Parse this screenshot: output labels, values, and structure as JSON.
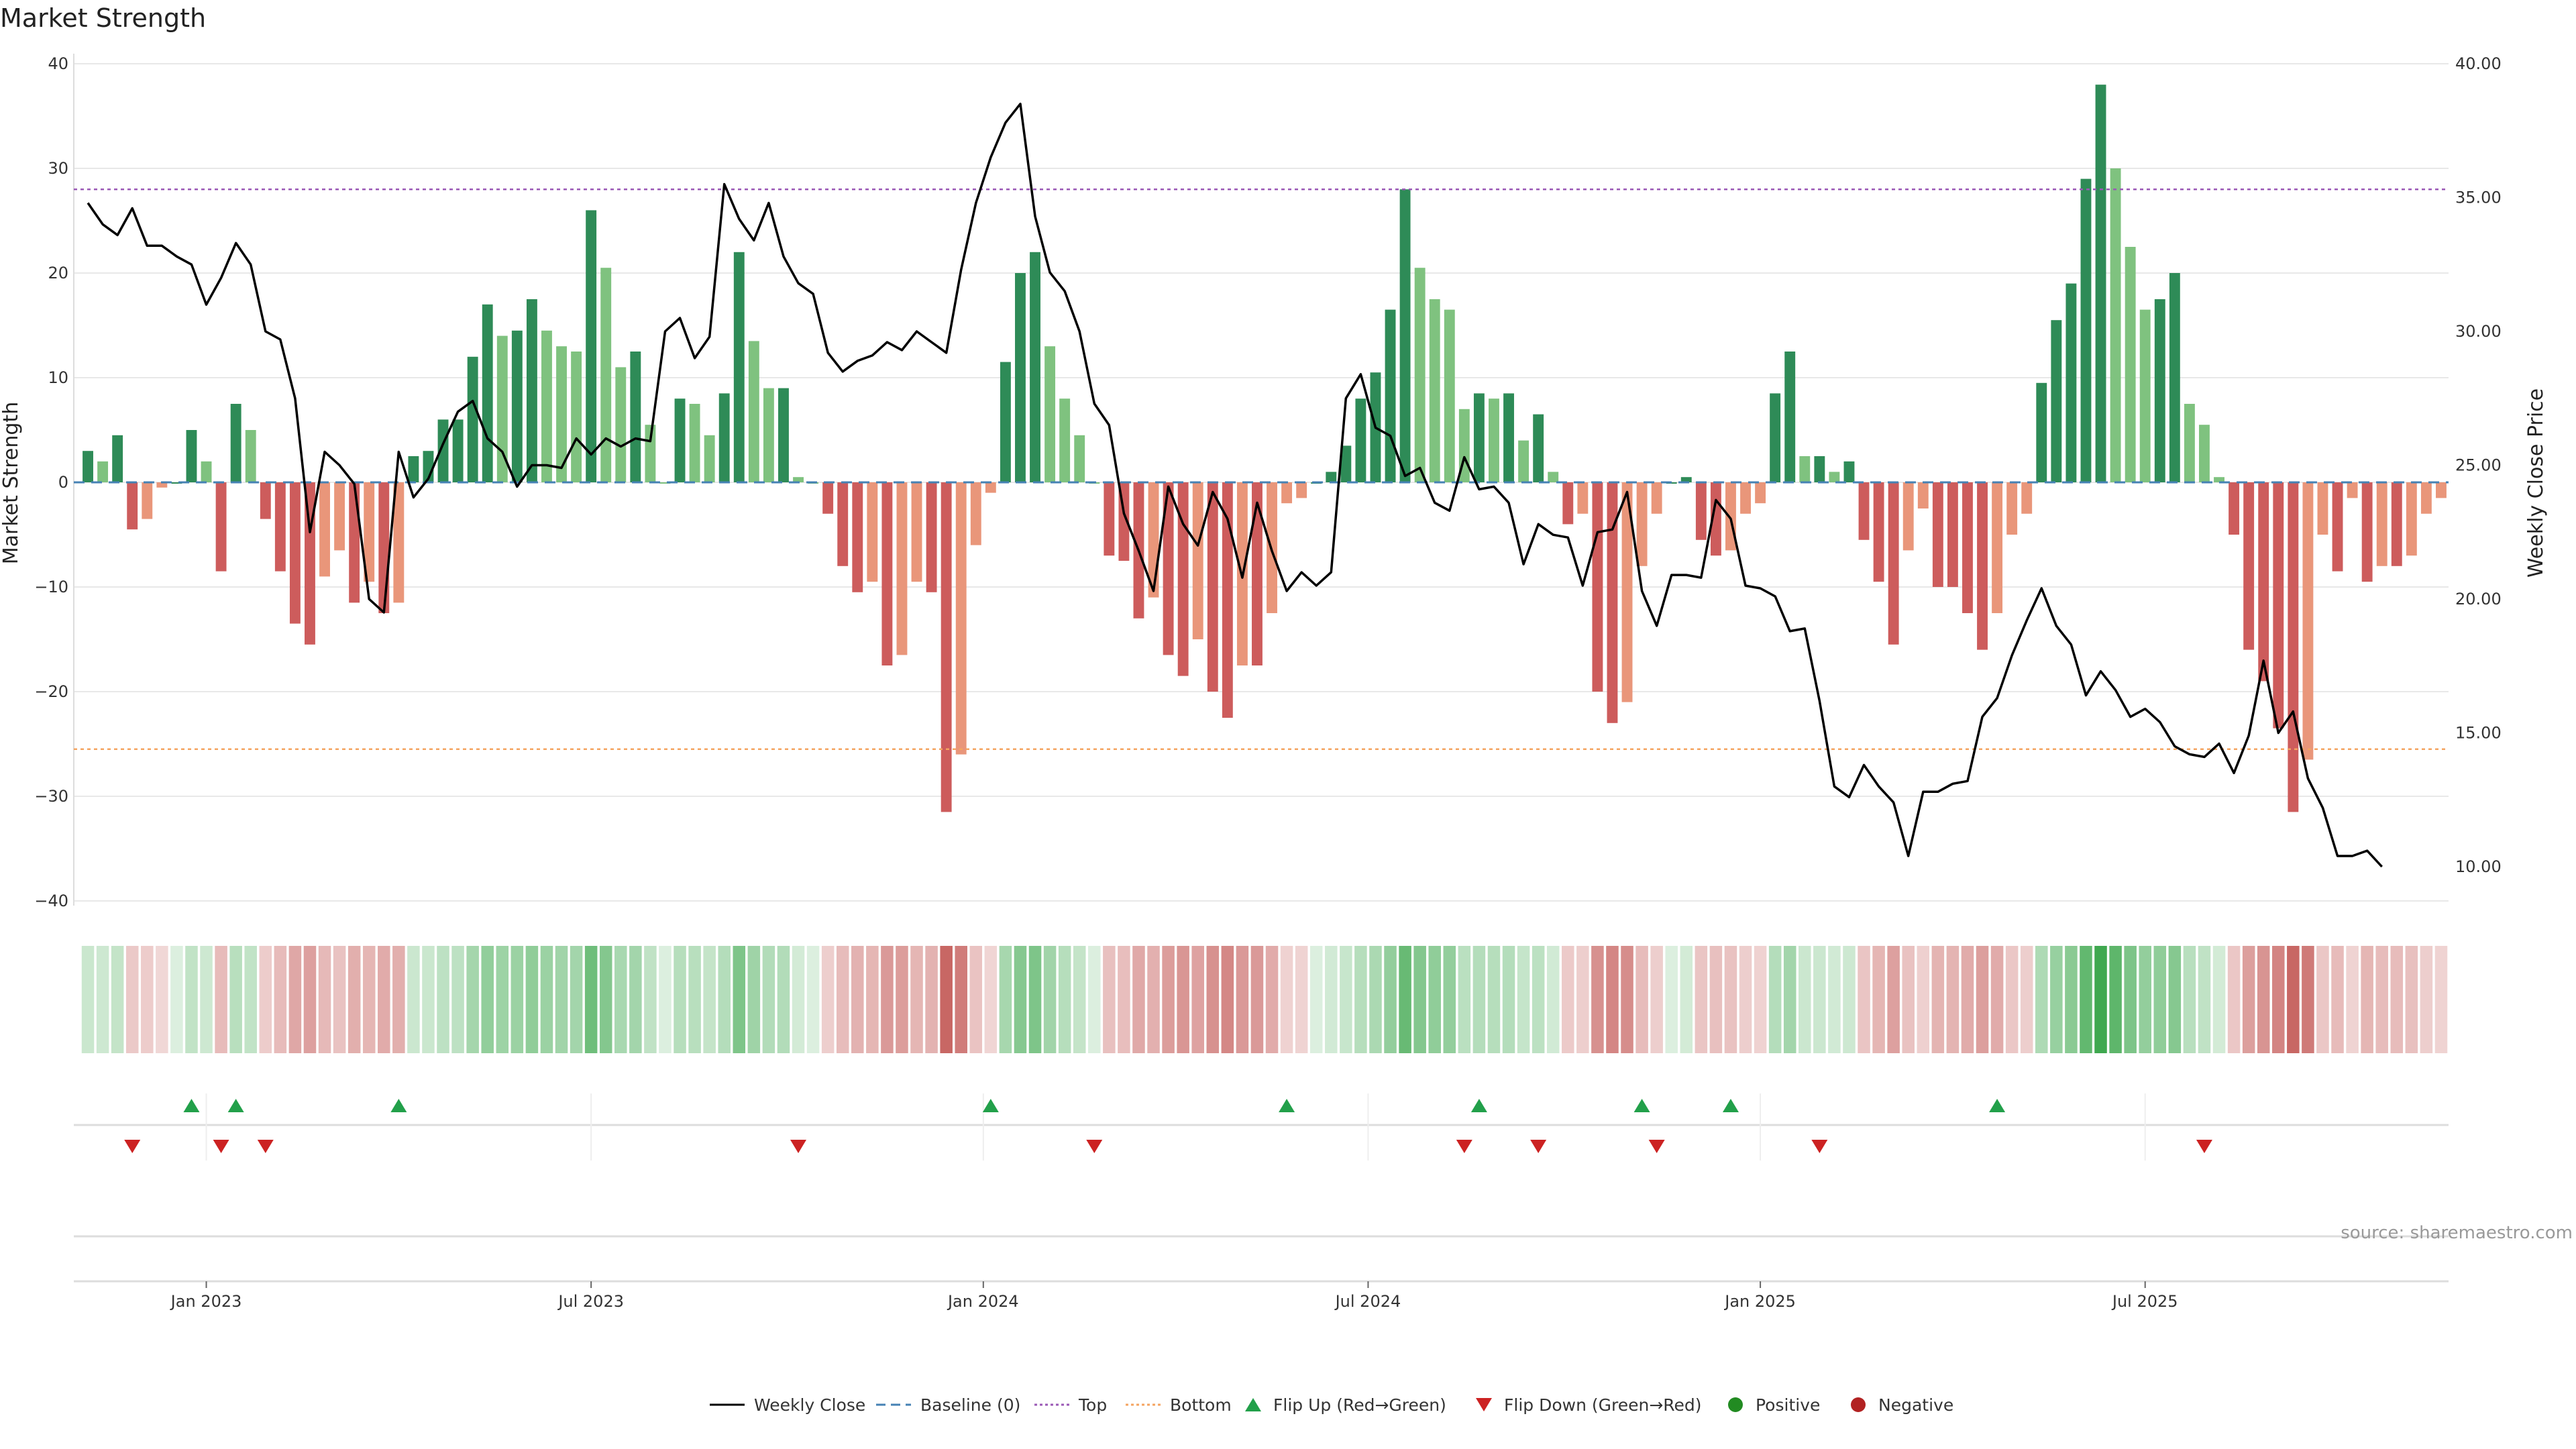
{
  "chart_data": {
    "type": "bar",
    "title": "Market Strength",
    "ylabel": "Market Strength",
    "y2label": "Weekly Close Price",
    "ylim": [
      -40,
      40
    ],
    "y2lim": [
      9.5,
      40
    ],
    "yticks": [
      "40",
      "30",
      "20",
      "10",
      "0",
      "−10",
      "−20",
      "−30",
      "−40"
    ],
    "ytick_values": [
      40,
      30,
      20,
      10,
      0,
      -10,
      -20,
      -30,
      -40
    ],
    "y2ticks": [
      "40.00",
      "35.00",
      "30.00",
      "25.00",
      "20.00",
      "15.00",
      "10.00"
    ],
    "y2tick_values": [
      40,
      35,
      30,
      25,
      20,
      15,
      10
    ],
    "xticks": [
      "Jan 2023",
      "Jul 2023",
      "Jan 2024",
      "Jul 2024",
      "Jan 2025",
      "Jul 2025"
    ],
    "xtick_weeks": [
      8,
      34,
      60.5,
      86.5,
      113,
      139
    ],
    "top_line": 28,
    "bottom_line": -25.5,
    "strength": [
      3,
      2,
      4.5,
      -4.5,
      -3.5,
      -0.5,
      0,
      5,
      2,
      -8.5,
      7.5,
      5,
      -3.5,
      -8.5,
      -13.5,
      -15.5,
      -9,
      -6.5,
      -11.5,
      -9.5,
      -12.5,
      -11.5,
      2.5,
      3,
      6,
      6,
      12,
      17,
      14,
      14.5,
      17.5,
      14.5,
      13,
      12.5,
      26,
      20.5,
      11,
      12.5,
      5.5,
      0,
      8,
      7.5,
      4.5,
      8.5,
      22,
      13.5,
      9,
      9,
      0.5,
      0,
      -3,
      -8,
      -10.5,
      -9.5,
      -17.5,
      -16.5,
      -9.5,
      -10.5,
      -31.5,
      -26,
      -6,
      -1,
      11.5,
      20,
      22,
      13,
      8,
      4.5,
      0,
      -7,
      -7.5,
      -13,
      -11,
      -16.5,
      -18.5,
      -15,
      -20,
      -22.5,
      -17.5,
      -17.5,
      -12.5,
      -2,
      -1.5,
      0,
      1,
      3.5,
      8,
      10.5,
      16.5,
      28,
      20.5,
      17.5,
      16.5,
      7,
      8.5,
      8,
      8.5,
      4,
      6.5,
      1,
      -4,
      -3,
      -20,
      -23,
      -21,
      -8,
      -3,
      0,
      0.5,
      -5.5,
      -7,
      -6.5,
      -3,
      -2,
      8.5,
      12.5,
      2.5,
      2.5,
      1,
      2,
      -5.5,
      -9.5,
      -15.5,
      -6.5,
      -2.5,
      -10,
      -10,
      -12.5,
      -16,
      -12.5,
      -5,
      -3,
      9.5,
      15.5,
      19,
      29,
      38,
      30,
      22.5,
      16.5,
      17.5,
      20,
      7.5,
      5.5,
      0.5,
      -5,
      -16,
      -19,
      -23.5,
      -31.5,
      -26.5,
      -5,
      -8.5,
      -1.5,
      -9.5,
      -8,
      -8,
      -7,
      -3,
      -1.5
    ],
    "close": [
      34.8,
      34.0,
      33.6,
      34.6,
      33.2,
      33.2,
      32.8,
      32.5,
      31.0,
      32.0,
      33.3,
      32.5,
      30.0,
      29.7,
      27.5,
      22.5,
      25.5,
      25.0,
      24.3,
      20.0,
      19.5,
      25.5,
      23.8,
      24.5,
      25.8,
      27.0,
      27.4,
      26.0,
      25.5,
      24.2,
      25.0,
      25.0,
      24.9,
      26.0,
      25.4,
      26.0,
      25.7,
      26.0,
      25.9,
      30.0,
      30.5,
      29.0,
      29.8,
      35.5,
      34.2,
      33.4,
      34.8,
      32.8,
      31.8,
      31.4,
      29.2,
      28.5,
      28.9,
      29.1,
      29.6,
      29.3,
      30.0,
      29.6,
      29.2,
      32.3,
      34.8,
      36.5,
      37.8,
      38.5,
      34.3,
      32.2,
      31.5,
      30.0,
      27.3,
      26.5,
      23.2,
      21.8,
      20.3,
      24.2,
      22.8,
      22.0,
      24.0,
      23.0,
      20.8,
      23.6,
      21.8,
      20.3,
      21.0,
      20.5,
      21.0,
      27.5,
      28.4,
      26.4,
      26.1,
      24.6,
      24.9,
      23.6,
      23.3,
      25.3,
      24.1,
      24.2,
      23.6,
      21.3,
      22.8,
      22.4,
      22.3,
      20.5,
      22.5,
      22.6,
      24.0,
      20.3,
      19.0,
      20.9,
      20.9,
      20.8,
      23.7,
      23.0,
      20.5,
      20.4,
      20.1,
      18.8,
      18.9,
      16.2,
      13.0,
      12.6,
      13.8,
      13.0,
      12.4,
      10.4,
      12.8,
      12.8,
      13.1,
      13.2,
      15.6,
      16.3,
      17.9,
      19.2,
      20.4,
      19.0,
      18.3,
      16.4,
      17.3,
      16.6,
      15.6,
      15.9,
      15.4,
      14.5,
      14.2,
      14.1,
      14.6,
      13.5,
      14.9,
      17.7,
      15.0,
      15.8,
      13.3,
      12.2,
      10.4,
      10.4,
      10.6,
      10.0
    ],
    "flip_up_weeks": [
      7,
      10,
      21,
      61,
      81,
      94,
      105,
      111,
      129
    ],
    "flip_down_weeks": [
      3,
      9,
      12,
      48,
      68,
      93,
      98,
      106,
      117,
      143
    ],
    "legend": [
      "Weekly Close",
      "Baseline (0)",
      "Top",
      "Bottom",
      "Flip Up (Red→Green)",
      "Flip Down (Green→Red)",
      "Positive",
      "Negative"
    ],
    "legend_placement": "bottom-center",
    "source": "source: sharemaestro.com",
    "colors": {
      "strong_green": "#2e8b57",
      "light_green": "#7fc27f",
      "strong_red": "#cd5c5c",
      "light_red": "#e9967a",
      "close_line": "#000000",
      "baseline": "#4682b4",
      "top": "#9b59b6",
      "bottom": "#f4a460",
      "flip_up": "#22a04a",
      "flip_down": "#cc2222",
      "positive": "#228b22",
      "negative": "#b22222",
      "grid": "#e8e8e8",
      "heat_green": "#3fa84f",
      "heat_red": "#c0504d"
    }
  }
}
